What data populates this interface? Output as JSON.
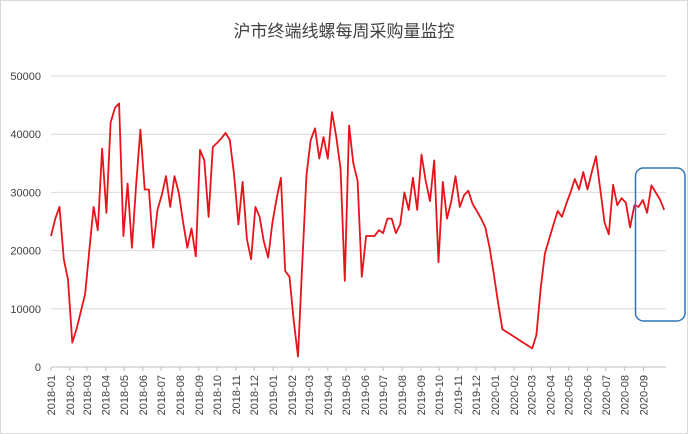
{
  "chart_data": {
    "type": "line",
    "title": "沪市终端线螺每周采购量监控",
    "xlabel": "",
    "ylabel": "",
    "ylim": [
      0,
      50000
    ],
    "yticks": [
      0,
      10000,
      20000,
      30000,
      40000,
      50000
    ],
    "ytick_labels": [
      "0",
      "10000",
      "20000",
      "30000",
      "40000",
      "50000"
    ],
    "xticks": [
      "2018-01",
      "2018-02",
      "2018-03",
      "2018-04",
      "2018-05",
      "2018-06",
      "2018-07",
      "2018-08",
      "2018-09",
      "2018-10",
      "2018-11",
      "2018-12",
      "2019-01",
      "2019-02",
      "2019-03",
      "2019-04",
      "2019-05",
      "2019-06",
      "2019-07",
      "2019-08",
      "2019-09",
      "2019-10",
      "2019-11",
      "2019-12",
      "2020-01",
      "2020-02",
      "2020-03",
      "2020-04",
      "2020-05",
      "2020-06",
      "2020-07",
      "2020-08",
      "2020-09"
    ],
    "grid": "horizontal",
    "series_color": "#e8141b",
    "highlight_color": "#2e75b6",
    "highlight_range": [
      "2020-09",
      "2020-10"
    ],
    "series": [
      {
        "points": [
          [
            "2018-01-01",
            22500
          ],
          [
            "2018-01-08",
            25500
          ],
          [
            "2018-01-15",
            27500
          ],
          [
            "2018-01-22",
            18500
          ],
          [
            "2018-01-29",
            15000
          ],
          [
            "2018-02-05",
            4200
          ],
          [
            "2018-02-12",
            6500
          ],
          [
            "2018-02-19",
            9500
          ],
          [
            "2018-02-26",
            12500
          ],
          [
            "2018-03-05",
            20000
          ],
          [
            "2018-03-12",
            27500
          ],
          [
            "2018-03-19",
            23500
          ],
          [
            "2018-03-26",
            37500
          ],
          [
            "2018-04-02",
            26500
          ],
          [
            "2018-04-09",
            42000
          ],
          [
            "2018-04-16",
            44500
          ],
          [
            "2018-04-23",
            45300
          ],
          [
            "2018-04-30",
            22500
          ],
          [
            "2018-05-07",
            31500
          ],
          [
            "2018-05-14",
            20500
          ],
          [
            "2018-05-21",
            31500
          ],
          [
            "2018-05-28",
            40800
          ],
          [
            "2018-06-04",
            30500
          ],
          [
            "2018-06-11",
            30500
          ],
          [
            "2018-06-18",
            20500
          ],
          [
            "2018-06-25",
            27000
          ],
          [
            "2018-07-02",
            29500
          ],
          [
            "2018-07-09",
            32800
          ],
          [
            "2018-07-16",
            27500
          ],
          [
            "2018-07-23",
            32800
          ],
          [
            "2018-07-30",
            30000
          ],
          [
            "2018-08-06",
            25000
          ],
          [
            "2018-08-13",
            20500
          ],
          [
            "2018-08-20",
            23800
          ],
          [
            "2018-08-27",
            19000
          ],
          [
            "2018-09-03",
            37300
          ],
          [
            "2018-09-10",
            35500
          ],
          [
            "2018-09-17",
            25800
          ],
          [
            "2018-09-24",
            37800
          ],
          [
            "2018-10-01",
            38500
          ],
          [
            "2018-10-08",
            39300
          ],
          [
            "2018-10-15",
            40200
          ],
          [
            "2018-10-22",
            39000
          ],
          [
            "2018-10-29",
            33000
          ],
          [
            "2018-11-05",
            24500
          ],
          [
            "2018-11-12",
            31800
          ],
          [
            "2018-11-19",
            22000
          ],
          [
            "2018-11-26",
            18500
          ],
          [
            "2018-12-03",
            27500
          ],
          [
            "2018-12-10",
            25800
          ],
          [
            "2018-12-17",
            21500
          ],
          [
            "2018-12-24",
            18800
          ],
          [
            "2018-12-31",
            24800
          ],
          [
            "2019-01-07",
            29000
          ],
          [
            "2019-01-14",
            32500
          ],
          [
            "2019-01-21",
            16500
          ],
          [
            "2019-01-28",
            15500
          ],
          [
            "2019-02-04",
            8000
          ],
          [
            "2019-02-11",
            1800
          ],
          [
            "2019-02-18",
            17500
          ],
          [
            "2019-02-25",
            33000
          ],
          [
            "2019-03-04",
            39000
          ],
          [
            "2019-03-11",
            41000
          ],
          [
            "2019-03-18",
            35800
          ],
          [
            "2019-03-25",
            39500
          ],
          [
            "2019-04-01",
            35800
          ],
          [
            "2019-04-08",
            43800
          ],
          [
            "2019-04-15",
            39500
          ],
          [
            "2019-04-22",
            34000
          ],
          [
            "2019-04-29",
            14800
          ],
          [
            "2019-05-06",
            41500
          ],
          [
            "2019-05-13",
            35000
          ],
          [
            "2019-05-20",
            32000
          ],
          [
            "2019-05-27",
            15500
          ],
          [
            "2019-06-03",
            22500
          ],
          [
            "2019-06-10",
            22500
          ],
          [
            "2019-06-17",
            22500
          ],
          [
            "2019-06-24",
            23500
          ],
          [
            "2019-07-01",
            23000
          ],
          [
            "2019-07-08",
            25500
          ],
          [
            "2019-07-15",
            25500
          ],
          [
            "2019-07-22",
            23000
          ],
          [
            "2019-07-29",
            24500
          ],
          [
            "2019-08-05",
            30000
          ],
          [
            "2019-08-12",
            27000
          ],
          [
            "2019-08-19",
            32500
          ],
          [
            "2019-08-26",
            27000
          ],
          [
            "2019-09-02",
            36500
          ],
          [
            "2019-09-09",
            32000
          ],
          [
            "2019-09-16",
            28500
          ],
          [
            "2019-09-23",
            35500
          ],
          [
            "2019-09-30",
            18000
          ],
          [
            "2019-10-07",
            31800
          ],
          [
            "2019-10-14",
            25500
          ],
          [
            "2019-10-21",
            28500
          ],
          [
            "2019-10-28",
            32800
          ],
          [
            "2019-11-04",
            27500
          ],
          [
            "2019-11-11",
            29500
          ],
          [
            "2019-11-18",
            30300
          ],
          [
            "2019-11-25",
            28000
          ],
          [
            "2019-12-02",
            26800
          ],
          [
            "2019-12-09",
            25500
          ],
          [
            "2019-12-16",
            24000
          ],
          [
            "2019-12-23",
            20500
          ],
          [
            "2019-12-30",
            16000
          ],
          [
            "2020-01-06",
            11000
          ],
          [
            "2020-01-13",
            6500
          ],
          [
            "2020-03-02",
            3200
          ],
          [
            "2020-03-09",
            5500
          ],
          [
            "2020-03-16",
            13500
          ],
          [
            "2020-03-23",
            19500
          ],
          [
            "2020-03-30",
            22000
          ],
          [
            "2020-04-06",
            24500
          ],
          [
            "2020-04-13",
            26800
          ],
          [
            "2020-04-20",
            25800
          ],
          [
            "2020-04-27",
            28000
          ],
          [
            "2020-05-04",
            30000
          ],
          [
            "2020-05-11",
            32300
          ],
          [
            "2020-05-18",
            30500
          ],
          [
            "2020-05-25",
            33500
          ],
          [
            "2020-06-01",
            30500
          ],
          [
            "2020-06-08",
            33500
          ],
          [
            "2020-06-15",
            36200
          ],
          [
            "2020-06-22",
            30500
          ],
          [
            "2020-06-29",
            24800
          ],
          [
            "2020-07-06",
            22800
          ],
          [
            "2020-07-13",
            31300
          ],
          [
            "2020-07-20",
            27800
          ],
          [
            "2020-07-27",
            29000
          ],
          [
            "2020-08-03",
            28200
          ],
          [
            "2020-08-10",
            24000
          ],
          [
            "2020-08-17",
            27800
          ],
          [
            "2020-08-24",
            27500
          ],
          [
            "2020-08-31",
            28700
          ],
          [
            "2020-09-07",
            26500
          ],
          [
            "2020-09-14",
            31200
          ],
          [
            "2020-09-21",
            30000
          ],
          [
            "2020-09-28",
            28800
          ],
          [
            "2020-10-05",
            27000
          ]
        ]
      }
    ]
  }
}
